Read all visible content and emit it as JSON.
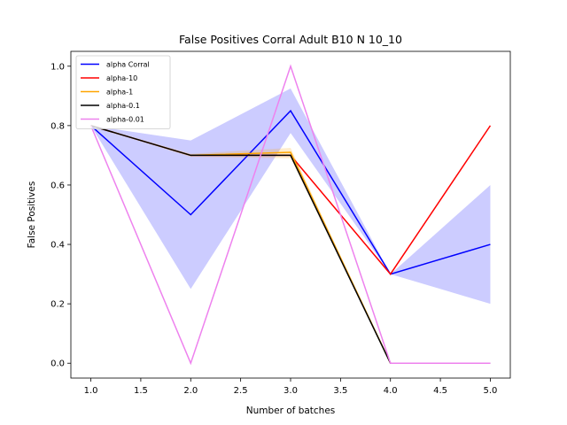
{
  "chart_data": {
    "type": "line",
    "title": "False Positives Corral Adult B10 N 10_10",
    "xlabel": "Number of batches",
    "ylabel": "False Positives",
    "xlim": [
      0.8,
      5.2
    ],
    "ylim": [
      -0.05,
      1.05
    ],
    "xticks": [
      "1.0",
      "1.5",
      "2.0",
      "2.5",
      "3.0",
      "3.5",
      "4.0",
      "4.5",
      "5.0"
    ],
    "yticks": [
      "0.0",
      "0.2",
      "0.4",
      "0.6",
      "0.8",
      "1.0"
    ],
    "grid": false,
    "legend_position": "top-left",
    "x": [
      1,
      2,
      3,
      4,
      5
    ],
    "series": [
      {
        "name": "alpha Corral",
        "color": "#0000ff",
        "values": [
          0.8,
          0.5,
          0.85,
          0.3,
          0.4
        ],
        "band_lower": [
          0.8,
          0.25,
          0.775,
          0.3,
          0.2
        ],
        "band_upper": [
          0.8,
          0.75,
          0.925,
          0.3,
          0.6
        ]
      },
      {
        "name": "alpha-10",
        "color": "#ff0000",
        "values": [
          0.8,
          0.7,
          0.7,
          0.3,
          0.8
        ]
      },
      {
        "name": "alpha-1",
        "color": "#ffa500",
        "values": [
          0.8,
          0.7,
          0.71,
          0.0,
          0.0
        ],
        "band_lower": [
          0.8,
          0.695,
          0.69,
          0.0,
          0.0
        ],
        "band_upper": [
          0.8,
          0.705,
          0.725,
          0.0,
          0.0
        ]
      },
      {
        "name": "alpha-0.1",
        "color": "#000000",
        "values": [
          0.8,
          0.7,
          0.7,
          0.0,
          0.0
        ]
      },
      {
        "name": "alpha-0.01",
        "color": "#ee82ee",
        "values": [
          0.8,
          0.0,
          1.0,
          0.0,
          0.0
        ]
      }
    ]
  }
}
